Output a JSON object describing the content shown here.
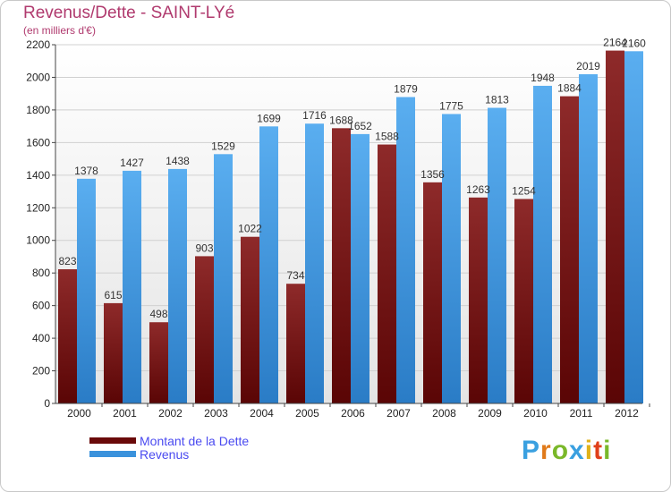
{
  "chart_data": {
    "type": "bar",
    "title": "Revenus/Dette - SAINT-LYé",
    "subtitle": "(en milliers d'€)",
    "categories": [
      "2000",
      "2001",
      "2002",
      "2003",
      "2004",
      "2005",
      "2006",
      "2007",
      "2008",
      "2009",
      "2010",
      "2011",
      "2012"
    ],
    "series": [
      {
        "name": "Montant de la Dette",
        "color": "#8b1c1c",
        "values": [
          823,
          615,
          498,
          903,
          1022,
          734,
          1688,
          1588,
          1356,
          1263,
          1254,
          1884,
          2164
        ]
      },
      {
        "name": "Revenus",
        "color": "#3a92dc",
        "values": [
          1378,
          1427,
          1438,
          1529,
          1699,
          1716,
          1652,
          1879,
          1775,
          1813,
          1948,
          2019,
          2160
        ]
      }
    ],
    "ylim": [
      0,
      2200
    ],
    "yticks": [
      0,
      200,
      400,
      600,
      800,
      1000,
      1200,
      1400,
      1600,
      1800,
      2000,
      2200
    ],
    "grid": true,
    "legend": "bottom-left"
  },
  "brand": {
    "letters": [
      "P",
      "r",
      "o",
      "x",
      "i",
      "t",
      "i"
    ],
    "colors": [
      "#3aa0e0",
      "#e07a1a",
      "#7ab82a",
      "#3aa0e0",
      "#e0b21a",
      "#e0401a",
      "#7ab82a"
    ]
  }
}
